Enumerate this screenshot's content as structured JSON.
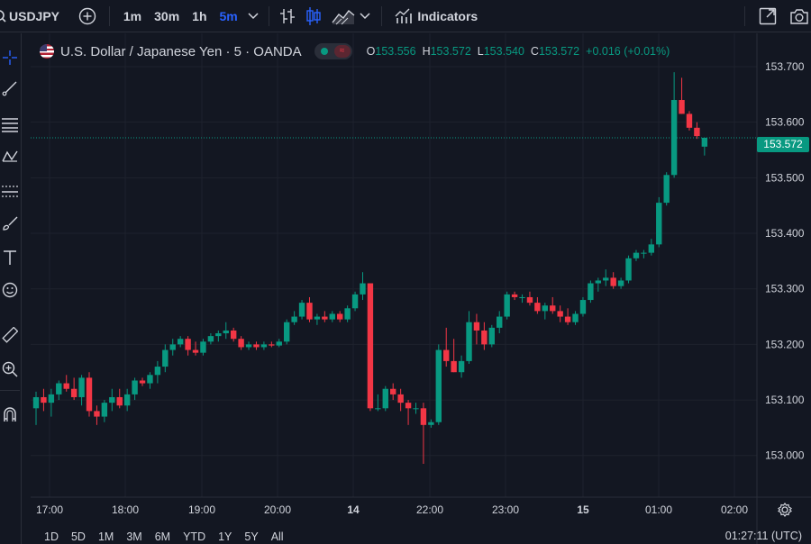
{
  "toolbar": {
    "symbol": "USDJPY",
    "timeframes": [
      "1m",
      "30m",
      "1h",
      "5m"
    ],
    "active_timeframe": "5m",
    "indicators_label": "Indicators"
  },
  "legend": {
    "title": "U.S. Dollar / Japanese Yen · 5 · OANDA",
    "open_label": "O",
    "open": "153.556",
    "high_label": "H",
    "high": "153.572",
    "low_label": "L",
    "low": "153.540",
    "close_label": "C",
    "close": "153.572",
    "change": "+0.016 (+0.01%)"
  },
  "current_price": "153.572",
  "colors": {
    "up": "#089981",
    "down": "#f23645",
    "bg": "#131722",
    "grid": "#1e222d",
    "accent": "#2962ff"
  },
  "left_tools": [
    "crosshair-icon",
    "trendline-icon",
    "fib-icon",
    "pattern-icon",
    "forecast-icon",
    "brush-icon",
    "text-icon",
    "emoji-icon",
    "ruler-icon",
    "zoom-in-icon",
    "magnet-icon"
  ],
  "ranges": [
    "1D",
    "5D",
    "1M",
    "3M",
    "6M",
    "YTD",
    "1Y",
    "5Y",
    "All"
  ],
  "clock": "01:27:11 (UTC)",
  "chart_data": {
    "type": "candlestick",
    "y_ticks": [
      "153.000",
      "153.100",
      "153.200",
      "153.300",
      "153.400",
      "153.500",
      "153.600",
      "153.700"
    ],
    "x_ticks": [
      "17:00",
      "18:00",
      "19:00",
      "20:00",
      "14",
      "22:00",
      "23:00",
      "15",
      "01:00",
      "02:00"
    ],
    "ylim": [
      152.925,
      153.76
    ],
    "candles": [
      [
        153.085,
        153.115,
        153.055,
        153.105
      ],
      [
        153.105,
        153.12,
        153.08,
        153.095
      ],
      [
        153.095,
        153.12,
        153.07,
        153.11
      ],
      [
        153.11,
        153.135,
        153.1,
        153.13
      ],
      [
        153.13,
        153.145,
        153.115,
        153.12
      ],
      [
        153.12,
        153.14,
        153.1,
        153.105
      ],
      [
        153.105,
        153.145,
        153.09,
        153.14
      ],
      [
        153.14,
        153.15,
        153.07,
        153.08
      ],
      [
        153.08,
        153.09,
        153.055,
        153.07
      ],
      [
        153.07,
        153.1,
        153.06,
        153.095
      ],
      [
        153.095,
        153.12,
        153.08,
        153.105
      ],
      [
        153.105,
        153.12,
        153.085,
        153.09
      ],
      [
        153.09,
        153.12,
        153.08,
        153.11
      ],
      [
        153.11,
        153.14,
        153.1,
        153.135
      ],
      [
        153.135,
        153.14,
        153.125,
        153.13
      ],
      [
        153.13,
        153.15,
        153.12,
        153.145
      ],
      [
        153.145,
        153.17,
        153.13,
        153.16
      ],
      [
        153.16,
        153.2,
        153.15,
        153.19
      ],
      [
        153.19,
        153.21,
        153.18,
        153.2
      ],
      [
        153.2,
        153.215,
        153.195,
        153.21
      ],
      [
        153.21,
        153.215,
        153.18,
        153.19
      ],
      [
        153.19,
        153.205,
        153.18,
        153.185
      ],
      [
        153.185,
        153.21,
        153.18,
        153.205
      ],
      [
        153.205,
        153.22,
        153.2,
        153.215
      ],
      [
        153.215,
        153.225,
        153.205,
        153.22
      ],
      [
        153.22,
        153.24,
        153.21,
        153.225
      ],
      [
        153.225,
        153.23,
        153.205,
        153.21
      ],
      [
        153.21,
        153.215,
        153.19,
        153.195
      ],
      [
        153.195,
        153.205,
        153.19,
        153.2
      ],
      [
        153.2,
        153.205,
        153.19,
        153.195
      ],
      [
        153.195,
        153.205,
        153.19,
        153.2
      ],
      [
        153.2,
        153.205,
        153.195,
        153.198
      ],
      [
        153.198,
        153.21,
        153.195,
        153.205
      ],
      [
        153.205,
        153.245,
        153.2,
        153.24
      ],
      [
        153.24,
        153.26,
        153.235,
        153.25
      ],
      [
        153.25,
        153.28,
        153.245,
        153.275
      ],
      [
        153.275,
        153.285,
        153.24,
        153.245
      ],
      [
        153.245,
        153.255,
        153.235,
        153.25
      ],
      [
        153.25,
        153.26,
        153.24,
        153.245
      ],
      [
        153.245,
        153.26,
        153.24,
        153.255
      ],
      [
        153.255,
        153.26,
        153.24,
        153.245
      ],
      [
        153.245,
        153.27,
        153.24,
        153.265
      ],
      [
        153.265,
        153.295,
        153.26,
        153.29
      ],
      [
        153.29,
        153.33,
        153.28,
        153.31
      ],
      [
        153.31,
        153.31,
        153.08,
        153.085
      ],
      [
        153.085,
        153.11,
        153.08,
        153.085
      ],
      [
        153.085,
        153.125,
        153.08,
        153.12
      ],
      [
        153.12,
        153.13,
        153.1,
        153.11
      ],
      [
        153.11,
        153.12,
        153.08,
        153.095
      ],
      [
        153.095,
        153.1,
        153.055,
        153.085
      ],
      [
        153.085,
        153.095,
        153.075,
        153.085
      ],
      [
        153.085,
        153.095,
        152.985,
        153.055
      ],
      [
        153.055,
        153.065,
        153.05,
        153.06
      ],
      [
        153.06,
        153.2,
        153.055,
        153.19
      ],
      [
        153.19,
        153.23,
        153.16,
        153.17
      ],
      [
        153.17,
        153.21,
        153.15,
        153.15
      ],
      [
        153.15,
        153.18,
        153.14,
        153.17
      ],
      [
        153.17,
        153.26,
        153.165,
        153.24
      ],
      [
        153.24,
        153.255,
        153.2,
        153.225
      ],
      [
        153.225,
        153.24,
        153.19,
        153.2
      ],
      [
        153.2,
        153.235,
        153.195,
        153.23
      ],
      [
        153.23,
        153.26,
        153.22,
        153.25
      ],
      [
        153.25,
        153.295,
        153.245,
        153.29
      ],
      [
        153.29,
        153.295,
        153.28,
        153.285
      ],
      [
        153.285,
        153.29,
        153.275,
        153.285
      ],
      [
        153.285,
        153.295,
        153.27,
        153.275
      ],
      [
        153.275,
        153.285,
        153.255,
        153.26
      ],
      [
        153.26,
        153.275,
        153.245,
        153.27
      ],
      [
        153.27,
        153.285,
        153.255,
        153.26
      ],
      [
        153.26,
        153.27,
        153.24,
        153.25
      ],
      [
        153.25,
        153.265,
        153.235,
        153.24
      ],
      [
        153.24,
        153.26,
        153.235,
        153.255
      ],
      [
        153.255,
        153.285,
        153.25,
        153.28
      ],
      [
        153.28,
        153.315,
        153.275,
        153.31
      ],
      [
        153.31,
        153.32,
        153.295,
        153.315
      ],
      [
        153.315,
        153.335,
        153.305,
        153.32
      ],
      [
        153.32,
        153.33,
        153.3,
        153.305
      ],
      [
        153.305,
        153.32,
        153.3,
        153.315
      ],
      [
        153.315,
        153.36,
        153.31,
        153.355
      ],
      [
        153.355,
        153.37,
        153.35,
        153.365
      ],
      [
        153.365,
        153.37,
        153.355,
        153.365
      ],
      [
        153.365,
        153.39,
        153.36,
        153.38
      ],
      [
        153.38,
        153.465,
        153.375,
        153.455
      ],
      [
        153.455,
        153.51,
        153.45,
        153.505
      ],
      [
        153.505,
        153.69,
        153.5,
        153.64
      ],
      [
        153.64,
        153.68,
        153.615,
        153.615
      ],
      [
        153.615,
        153.62,
        153.585,
        153.59
      ],
      [
        153.59,
        153.6,
        153.57,
        153.575
      ],
      [
        153.556,
        153.572,
        153.54,
        153.572
      ]
    ]
  }
}
